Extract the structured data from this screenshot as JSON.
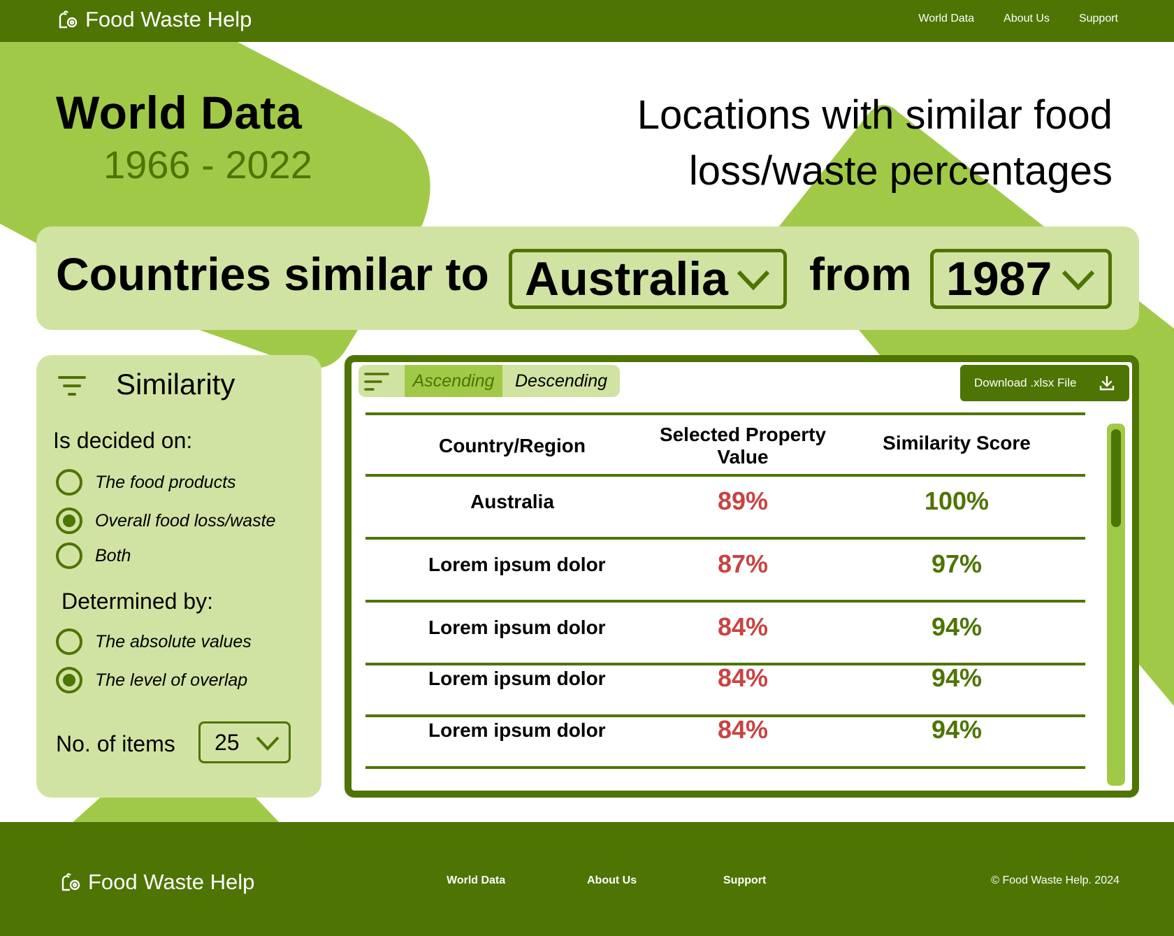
{
  "header": {
    "brand": "Food Waste Help",
    "nav": [
      "World Data",
      "About Us",
      "Support"
    ]
  },
  "page": {
    "title": "World Data",
    "range": "1966 - 2022",
    "headline_line1": "Locations with similar food",
    "headline_line2": "loss/waste percentages"
  },
  "selector": {
    "prefix": "Countries similar to",
    "country": "Australia",
    "mid": "from",
    "year": "1987"
  },
  "filter": {
    "title": "Similarity",
    "decided_label": "Is decided on:",
    "decided_options": [
      {
        "label": "The food products",
        "checked": false
      },
      {
        "label": "Overall food loss/waste",
        "checked": true
      },
      {
        "label": "Both",
        "checked": false
      }
    ],
    "determined_label": "Determined by:",
    "determined_options": [
      {
        "label": "The absolute values",
        "checked": false
      },
      {
        "label": "The level of overlap",
        "checked": true
      }
    ],
    "items_label": "No. of items",
    "items_value": "25"
  },
  "table": {
    "sort_asc": "Ascending",
    "sort_desc": "Descending",
    "download": "Download .xlsx File",
    "headers": [
      "Country/Region",
      "Selected Property Value",
      "Similarity Score"
    ],
    "rows": [
      {
        "country": "Australia",
        "value": "89%",
        "score": "100%"
      },
      {
        "country": "Lorem ipsum dolor",
        "value": "87%",
        "score": "97%"
      },
      {
        "country": "Lorem ipsum dolor",
        "value": "84%",
        "score": "94%"
      },
      {
        "country": "Lorem ipsum dolor",
        "value": "84%",
        "score": "94%"
      },
      {
        "country": "Lorem ipsum dolor",
        "value": "84%",
        "score": "94%"
      }
    ]
  },
  "footer": {
    "brand": "Food Waste Help",
    "nav": [
      "World Data",
      "About Us",
      "Support"
    ],
    "copyright": "© Food Waste Help. 2024"
  },
  "colors": {
    "dark_green": "#4e7403",
    "lime": "#a1c948",
    "pale_green": "#d1e3a3",
    "red_value": "#c94343"
  }
}
